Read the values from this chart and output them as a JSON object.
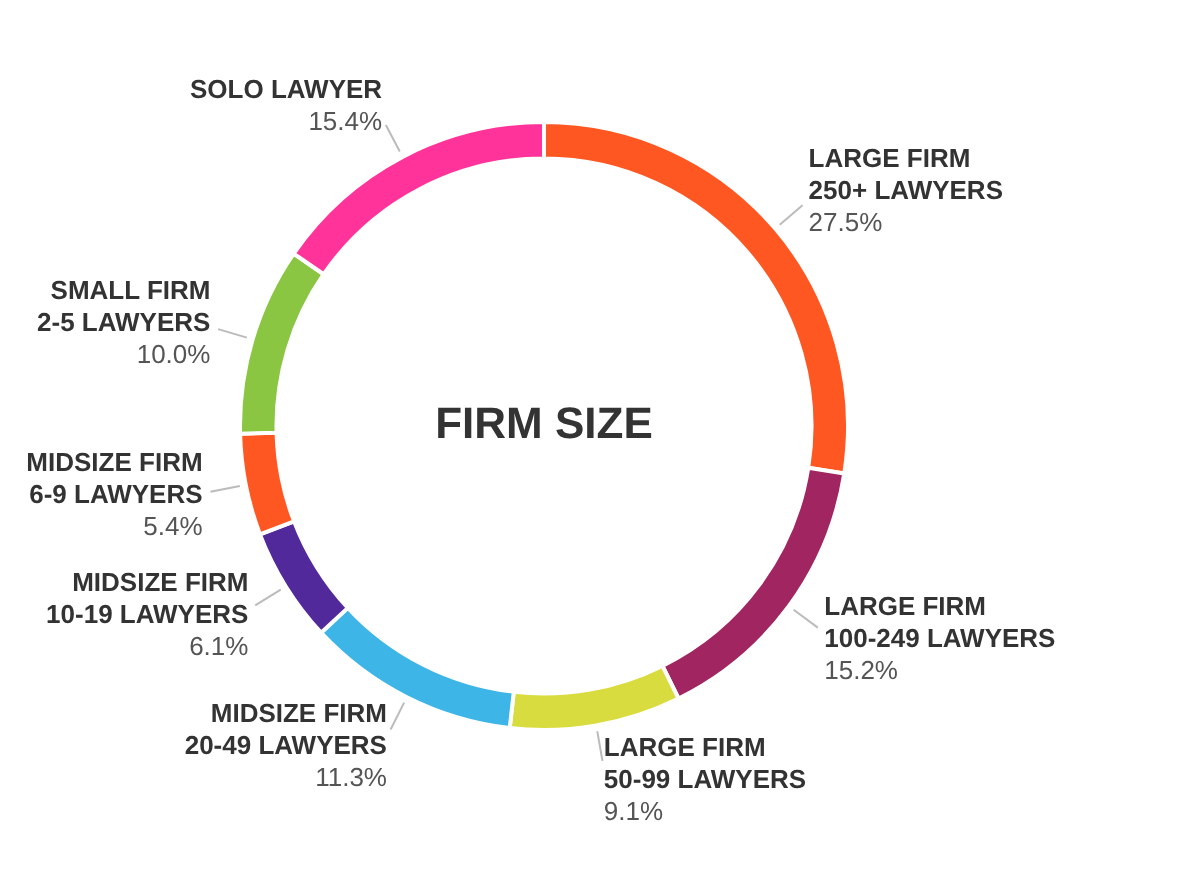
{
  "chart_data": {
    "type": "donut",
    "title": "FIRM SIZE",
    "categories": [
      "LARGE FIRM\n250+ LAWYERS",
      "LARGE FIRM\n100-249 LAWYERS",
      "LARGE FIRM\n50-99 LAWYERS",
      "MIDSIZE FIRM\n20-49 LAWYERS",
      "MIDSIZE FIRM\n10-19 LAWYERS",
      "MIDSIZE FIRM\n6-9 LAWYERS",
      "SMALL FIRM\n2-5 LAWYERS",
      "SOLO LAWYER"
    ],
    "values": [
      27.5,
      15.2,
      9.1,
      11.3,
      6.1,
      5.4,
      10.0,
      15.4
    ],
    "value_labels": [
      "27.5%",
      "15.2%",
      "9.1%",
      "11.3%",
      "6.1%",
      "5.4%",
      "10.0%",
      "15.4%"
    ],
    "colors": [
      "#ff5722",
      "#a12560",
      "#d9dc3e",
      "#3db5e6",
      "#52299a",
      "#ff5722",
      "#8bc643",
      "#ff3399"
    ],
    "legend": false
  }
}
